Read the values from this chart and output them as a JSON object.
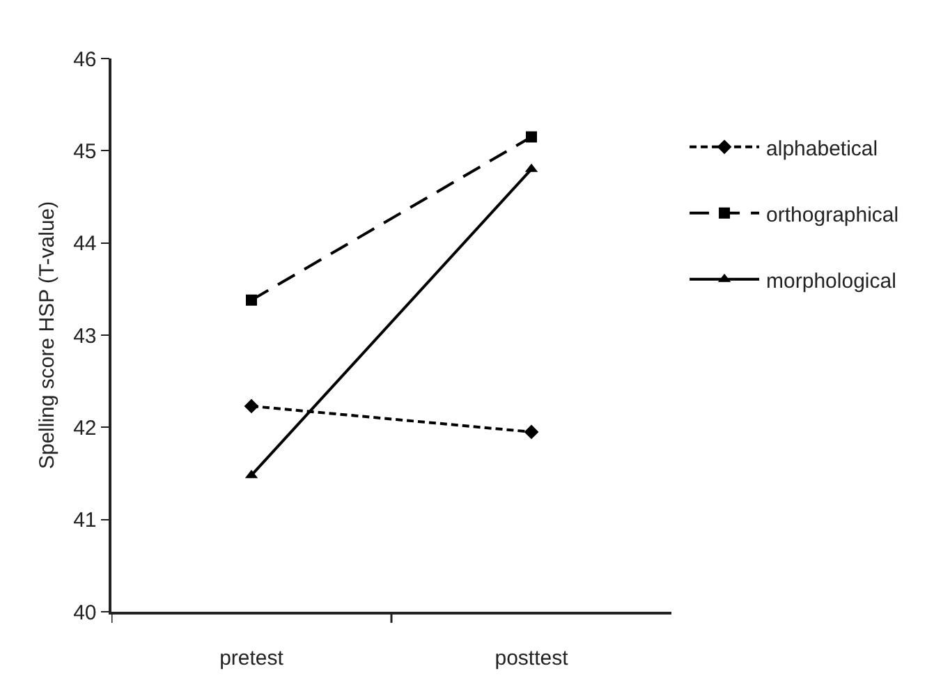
{
  "chart_data": {
    "type": "line",
    "ylabel": "Spelling score HSP (T-value)",
    "categories": [
      "pretest",
      "posttest"
    ],
    "series": [
      {
        "name": "alphabetical",
        "color": "#000000",
        "values": [
          42.23,
          41.95
        ],
        "marker": "diamond",
        "line_style": "dotted"
      },
      {
        "name": "orthographical",
        "color": "#000000",
        "values": [
          43.38,
          45.15
        ],
        "marker": "square",
        "line_style": "dashed"
      },
      {
        "name": "morphological",
        "color": "#000000",
        "values": [
          41.48,
          44.8
        ],
        "marker": "triangle",
        "line_style": "solid"
      }
    ],
    "ylim": [
      40,
      46
    ],
    "yticks": [
      40,
      41,
      42,
      43,
      44,
      45,
      46
    ],
    "legend": "right"
  }
}
